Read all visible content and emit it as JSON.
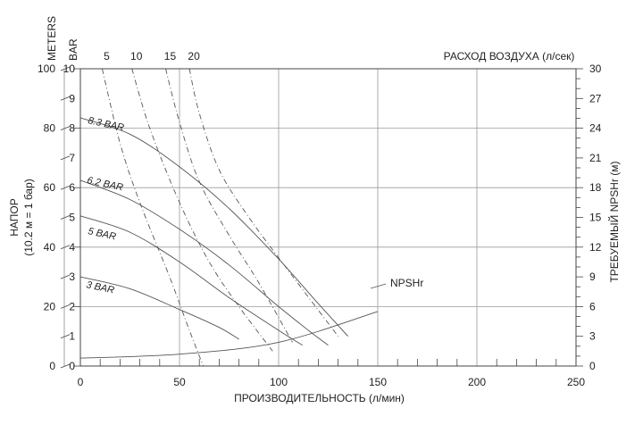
{
  "chart_data": {
    "type": "line",
    "xlabel": "ПРОИЗВОДИТЕЛЬНОСТЬ (л/мин)",
    "ylabel_left": [
      "НАПОР",
      "(10.2 м = 1 бар)"
    ],
    "ylabel_right": "ТРЕБУЕМЫЙ NPSHr (м)",
    "air_axis_title": "РАСХОД ВОЗДУХА (л/сек)",
    "units_meters": "METERS",
    "units_bar": "BAR",
    "xlim": [
      0,
      250
    ],
    "ylim_meters": [
      0,
      100
    ],
    "ylim_bar": [
      0,
      10
    ],
    "ylim_npshr": [
      0,
      30
    ],
    "x_ticks": [
      "0",
      "50",
      "100",
      "150",
      "200",
      "250"
    ],
    "meters_ticks": [
      "0",
      "20",
      "40",
      "60",
      "80",
      "100"
    ],
    "bar_ticks": [
      "0",
      "1",
      "2",
      "3",
      "4",
      "5",
      "6",
      "7",
      "8",
      "9",
      "10"
    ],
    "npshr_ticks": [
      "0",
      "3",
      "6",
      "9",
      "12",
      "15",
      "18",
      "21",
      "24",
      "27",
      "30"
    ],
    "grid": true,
    "series": [
      {
        "name": "8.3 BAR",
        "style": "solid",
        "x": [
          0,
          25,
          50,
          75,
          100,
          120,
          135
        ],
        "y": [
          83.5,
          78,
          67,
          53,
          36,
          21,
          10
        ]
      },
      {
        "name": "6.2 BAR",
        "style": "solid",
        "x": [
          0,
          25,
          50,
          75,
          100,
          115,
          125
        ],
        "y": [
          62.5,
          56,
          46,
          34,
          20,
          12,
          7
        ]
      },
      {
        "name": "5 BAR",
        "style": "solid",
        "x": [
          0,
          25,
          50,
          75,
          100,
          112
        ],
        "y": [
          50.5,
          45,
          35,
          23,
          12,
          7
        ]
      },
      {
        "name": "3 BAR",
        "style": "solid",
        "x": [
          0,
          25,
          50,
          70,
          80
        ],
        "y": [
          30,
          26,
          19,
          13,
          9
        ]
      },
      {
        "name": "NPSHr",
        "style": "solid",
        "axis": "npshr",
        "x": [
          0,
          50,
          100,
          150
        ],
        "y": [
          0.8,
          1.2,
          2.4,
          5.5
        ]
      }
    ],
    "air_flow_series": [
      {
        "name": "5",
        "style": "dashdot",
        "x": [
          11,
          20,
          30,
          45,
          55,
          62
        ],
        "y": [
          100,
          75,
          55,
          30,
          12,
          0
        ]
      },
      {
        "name": "10",
        "style": "dashdot",
        "x": [
          26,
          35,
          50,
          65,
          80,
          97
        ],
        "y": [
          100,
          80,
          55,
          35,
          20,
          5
        ]
      },
      {
        "name": "15",
        "style": "dashdot",
        "x": [
          43,
          50,
          60,
          75,
          90,
          107
        ],
        "y": [
          100,
          82,
          62,
          44,
          28,
          8
        ]
      },
      {
        "name": "20",
        "style": "dashdot",
        "x": [
          55,
          60,
          70,
          85,
          105,
          130
        ],
        "y": [
          100,
          85,
          66,
          50,
          32,
          10
        ]
      }
    ],
    "curve_labels": [
      "8.3 BAR",
      "6.2 BAR",
      "5 BAR",
      "3 BAR",
      "NPSHr"
    ]
  }
}
